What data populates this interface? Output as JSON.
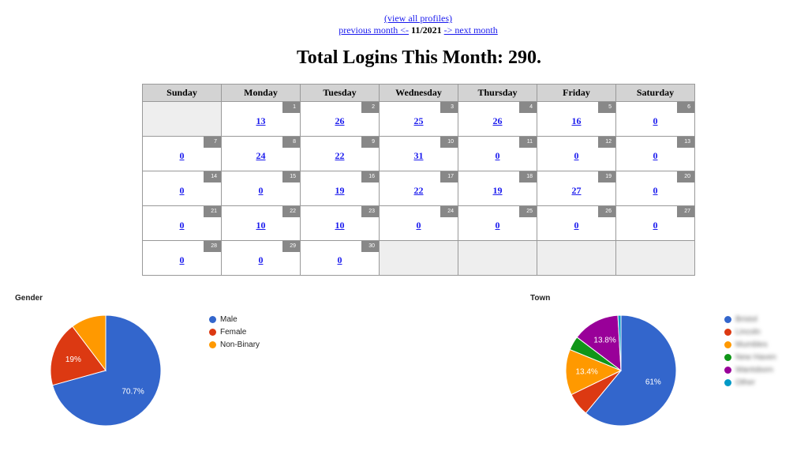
{
  "nav": {
    "view_all": "(view all profiles)",
    "prev": "previous month <-",
    "current": "11/2021",
    "next": "-> next month"
  },
  "title": "Total Logins This Month: 290.",
  "calendar": {
    "headers": [
      "Sunday",
      "Monday",
      "Tuesday",
      "Wednesday",
      "Thursday",
      "Friday",
      "Saturday"
    ],
    "weeks": [
      [
        null,
        {
          "day": "1",
          "count": "13"
        },
        {
          "day": "2",
          "count": "26"
        },
        {
          "day": "3",
          "count": "25"
        },
        {
          "day": "4",
          "count": "26"
        },
        {
          "day": "5",
          "count": "16"
        },
        {
          "day": "6",
          "count": "0"
        }
      ],
      [
        {
          "day": "7",
          "count": "0"
        },
        {
          "day": "8",
          "count": "24"
        },
        {
          "day": "9",
          "count": "22"
        },
        {
          "day": "10",
          "count": "31"
        },
        {
          "day": "11",
          "count": "0"
        },
        {
          "day": "12",
          "count": "0"
        },
        {
          "day": "13",
          "count": "0"
        }
      ],
      [
        {
          "day": "14",
          "count": "0"
        },
        {
          "day": "15",
          "count": "0"
        },
        {
          "day": "16",
          "count": "19"
        },
        {
          "day": "17",
          "count": "22"
        },
        {
          "day": "18",
          "count": "19"
        },
        {
          "day": "19",
          "count": "27"
        },
        {
          "day": "20",
          "count": "0"
        }
      ],
      [
        {
          "day": "21",
          "count": "0"
        },
        {
          "day": "22",
          "count": "10"
        },
        {
          "day": "23",
          "count": "10"
        },
        {
          "day": "24",
          "count": "0"
        },
        {
          "day": "25",
          "count": "0"
        },
        {
          "day": "26",
          "count": "0"
        },
        {
          "day": "27",
          "count": "0"
        }
      ],
      [
        {
          "day": "28",
          "count": "0"
        },
        {
          "day": "29",
          "count": "0"
        },
        {
          "day": "30",
          "count": "0"
        },
        null,
        null,
        null,
        null
      ]
    ]
  },
  "chart_data": [
    {
      "type": "pie",
      "title": "Gender",
      "slices": [
        {
          "label": "Male",
          "value": 70.7,
          "color": "#3366cc",
          "display": "70.7%"
        },
        {
          "label": "Female",
          "value": 19,
          "color": "#dc3912",
          "display": "19%"
        },
        {
          "label": "Non-Binary",
          "value": 10.3,
          "color": "#ff9900",
          "display": ""
        }
      ],
      "legend_position": "right"
    },
    {
      "type": "pie",
      "title": "Town",
      "slices": [
        {
          "label": "Bristol",
          "value": 61,
          "color": "#3366cc",
          "display": "61%"
        },
        {
          "label": "Lincoln",
          "value": 6.8,
          "color": "#dc3912",
          "display": ""
        },
        {
          "label": "Mumbles",
          "value": 13.4,
          "color": "#ff9900",
          "display": "13.4%"
        },
        {
          "label": "New Haven",
          "value": 4.1,
          "color": "#109618",
          "display": ""
        },
        {
          "label": "Wantsborn",
          "value": 13.8,
          "color": "#990099",
          "display": "13.8%"
        },
        {
          "label": "Other",
          "value": 0.9,
          "color": "#0099c6",
          "display": ""
        }
      ],
      "legend_position": "right",
      "legend_blurred": true
    }
  ]
}
